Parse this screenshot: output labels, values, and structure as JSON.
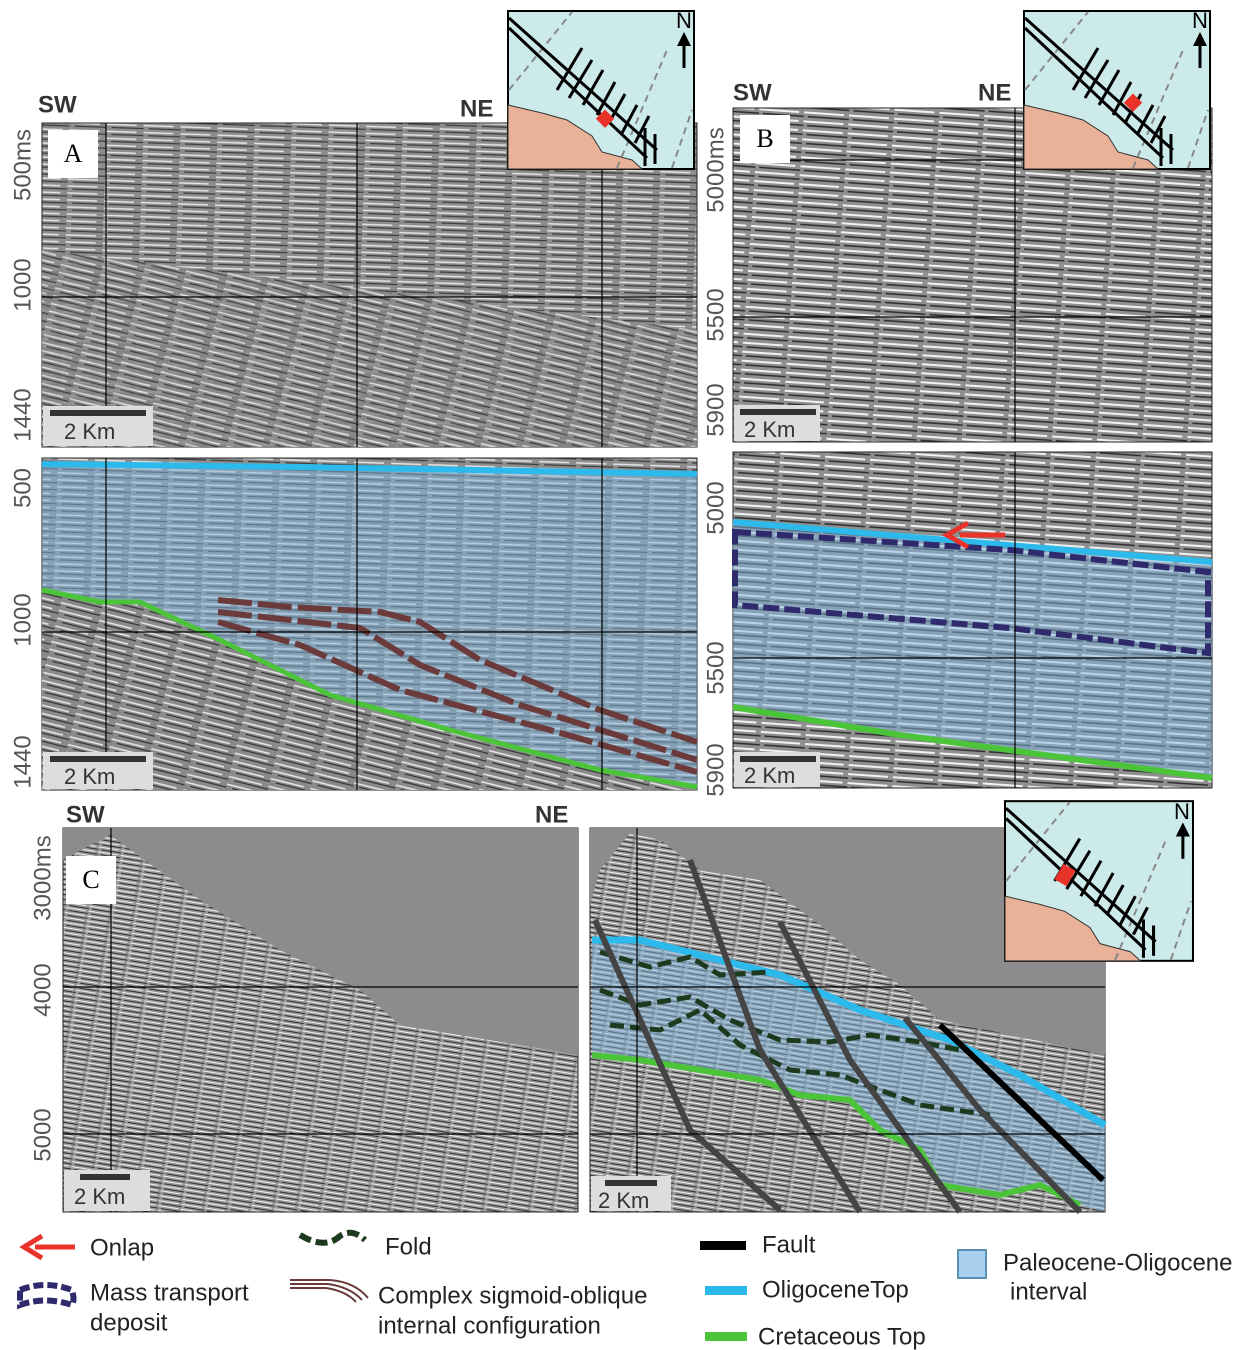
{
  "panels": {
    "A": {
      "label": "A",
      "left_direction": "SW",
      "right_direction": "NE",
      "top_axis": [
        "500ms",
        "1000",
        "1440"
      ],
      "bottom_axis": [
        "500",
        "1000",
        "1440"
      ],
      "scale_top": "2 Km",
      "scale_bottom": "2 Km",
      "north": "N"
    },
    "B": {
      "label": "B",
      "left_direction": "SW",
      "right_direction": "NE",
      "top_axis": [
        "5000ms",
        "5500",
        "5900"
      ],
      "bottom_axis": [
        "5000",
        "5500",
        "5900"
      ],
      "scale_top": "2 Km",
      "scale_bottom": "2 Km",
      "north": "N"
    },
    "C": {
      "label": "C",
      "left_direction": "SW",
      "right_direction": "NE",
      "axis": [
        "3000ms",
        "4000",
        "5000"
      ],
      "scale_left": "2 Km",
      "scale_right": "2 Km",
      "north": "N"
    }
  },
  "legend": [
    {
      "lines": [
        "Onlap"
      ]
    },
    {
      "lines": [
        "Mass transport",
        "deposit"
      ]
    },
    {
      "lines": [
        "Fold"
      ]
    },
    {
      "lines": [
        "Complex sigmoid-oblique",
        "internal configuration"
      ]
    },
    {
      "lines": [
        "Fault"
      ]
    },
    {
      "lines": [
        "OligoceneTop"
      ]
    },
    {
      "lines": [
        "Cretaceous Top"
      ]
    },
    {
      "lines": [
        "Paleocene-Oligocene",
        "interval"
      ]
    }
  ]
}
